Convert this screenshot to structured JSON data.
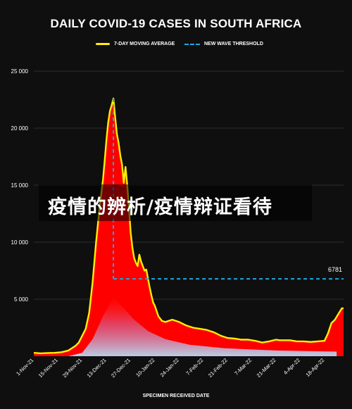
{
  "chart_data": {
    "type": "area",
    "title": "DAILY COVID-19 CASES IN SOUTH AFRICA",
    "xlabel": "SPECIMEN RECEIVED DATE",
    "ylabel": "",
    "ylim": [
      0,
      25000
    ],
    "y_ticks": [
      5000,
      10000,
      15000,
      20000,
      25000
    ],
    "y_tick_labels": [
      "5 000",
      "10 000",
      "15 000",
      "20 000",
      "25 000"
    ],
    "x_tick_labels": [
      "1-Nov-21",
      "15-Nov-21",
      "29-Nov-21",
      "13-Dec-21",
      "27-Dec-21",
      "10-Jan-22",
      "24-Jan-22",
      "7-Feb-22",
      "21-Feb-22",
      "7-Mar-22",
      "21-Mar-22",
      "4-Apr-22",
      "18-Apr-22"
    ],
    "x_range_days": [
      0,
      179
    ],
    "legend_position": "top-center",
    "series": [
      {
        "name": "7-DAY MOVING AVERAGE",
        "style": "solid",
        "color": "#ffee00",
        "x": [
          0,
          4,
          8,
          12,
          16,
          20,
          22,
          24,
          26,
          28,
          30,
          32,
          34,
          36,
          38,
          40,
          41,
          42,
          43,
          44,
          45,
          46,
          47,
          48,
          49,
          50,
          51,
          52,
          53,
          54,
          55,
          56,
          57,
          58,
          59,
          60,
          61,
          62,
          63,
          64,
          65,
          66,
          67,
          68,
          69,
          70,
          72,
          74,
          76,
          78,
          80,
          84,
          88,
          92,
          96,
          100,
          104,
          108,
          112,
          116,
          120,
          124,
          128,
          132,
          136,
          140,
          142,
          144,
          148,
          152,
          156,
          160,
          164,
          168,
          170,
          172,
          174,
          176,
          178,
          179
        ],
        "values": [
          300,
          250,
          280,
          300,
          350,
          500,
          700,
          900,
          1200,
          1800,
          2400,
          3800,
          6500,
          10000,
          13000,
          15500,
          17200,
          19000,
          20500,
          21500,
          22000,
          22600,
          21000,
          19500,
          18700,
          17600,
          16800,
          15200,
          16600,
          15000,
          13000,
          10800,
          9500,
          8600,
          8200,
          7900,
          8900,
          8300,
          7900,
          7500,
          7600,
          6800,
          6000,
          5300,
          4700,
          4400,
          3500,
          3100,
          3000,
          3100,
          3200,
          3000,
          2700,
          2500,
          2400,
          2300,
          2100,
          1800,
          1600,
          1550,
          1450,
          1450,
          1350,
          1200,
          1300,
          1450,
          1400,
          1400,
          1400,
          1300,
          1300,
          1250,
          1300,
          1350,
          2000,
          2900,
          3200,
          3700,
          4200,
          4200
        ]
      },
      {
        "name": "NEW WAVE THRESHOLD",
        "style": "dashed",
        "color": "#1ea7e1",
        "start_x": 46,
        "value": 6781,
        "label": "6781"
      }
    ]
  },
  "overlay": {
    "text": "疫情的辨析/疫情辩证看待"
  }
}
